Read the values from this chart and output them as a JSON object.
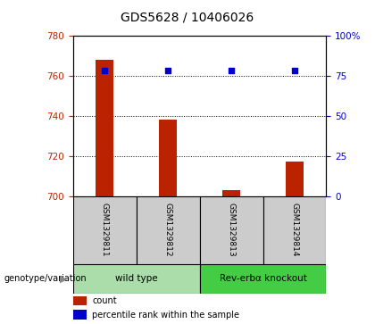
{
  "title": "GDS5628 / 10406026",
  "samples": [
    "GSM1329811",
    "GSM1329812",
    "GSM1329813",
    "GSM1329814"
  ],
  "counts": [
    768,
    738,
    703,
    717
  ],
  "percentiles": [
    78,
    78,
    78,
    78
  ],
  "ylim_left": [
    700,
    780
  ],
  "ylim_right": [
    0,
    100
  ],
  "yticks_left": [
    700,
    720,
    740,
    760,
    780
  ],
  "yticks_right": [
    0,
    25,
    50,
    75,
    100
  ],
  "bar_color": "#bb2200",
  "dot_color": "#0000cc",
  "groups": [
    {
      "label": "wild type",
      "samples": [
        0,
        1
      ],
      "color": "#aaddaa"
    },
    {
      "label": "Rev-erbα knockout",
      "samples": [
        2,
        3
      ],
      "color": "#44cc44"
    }
  ],
  "group_label": "genotype/variation",
  "legend_bar_label": "count",
  "legend_dot_label": "percentile rank within the sample",
  "title_fontsize": 10,
  "tick_fontsize": 7.5,
  "sample_fontsize": 6.5,
  "group_fontsize": 7.5,
  "legend_fontsize": 7
}
